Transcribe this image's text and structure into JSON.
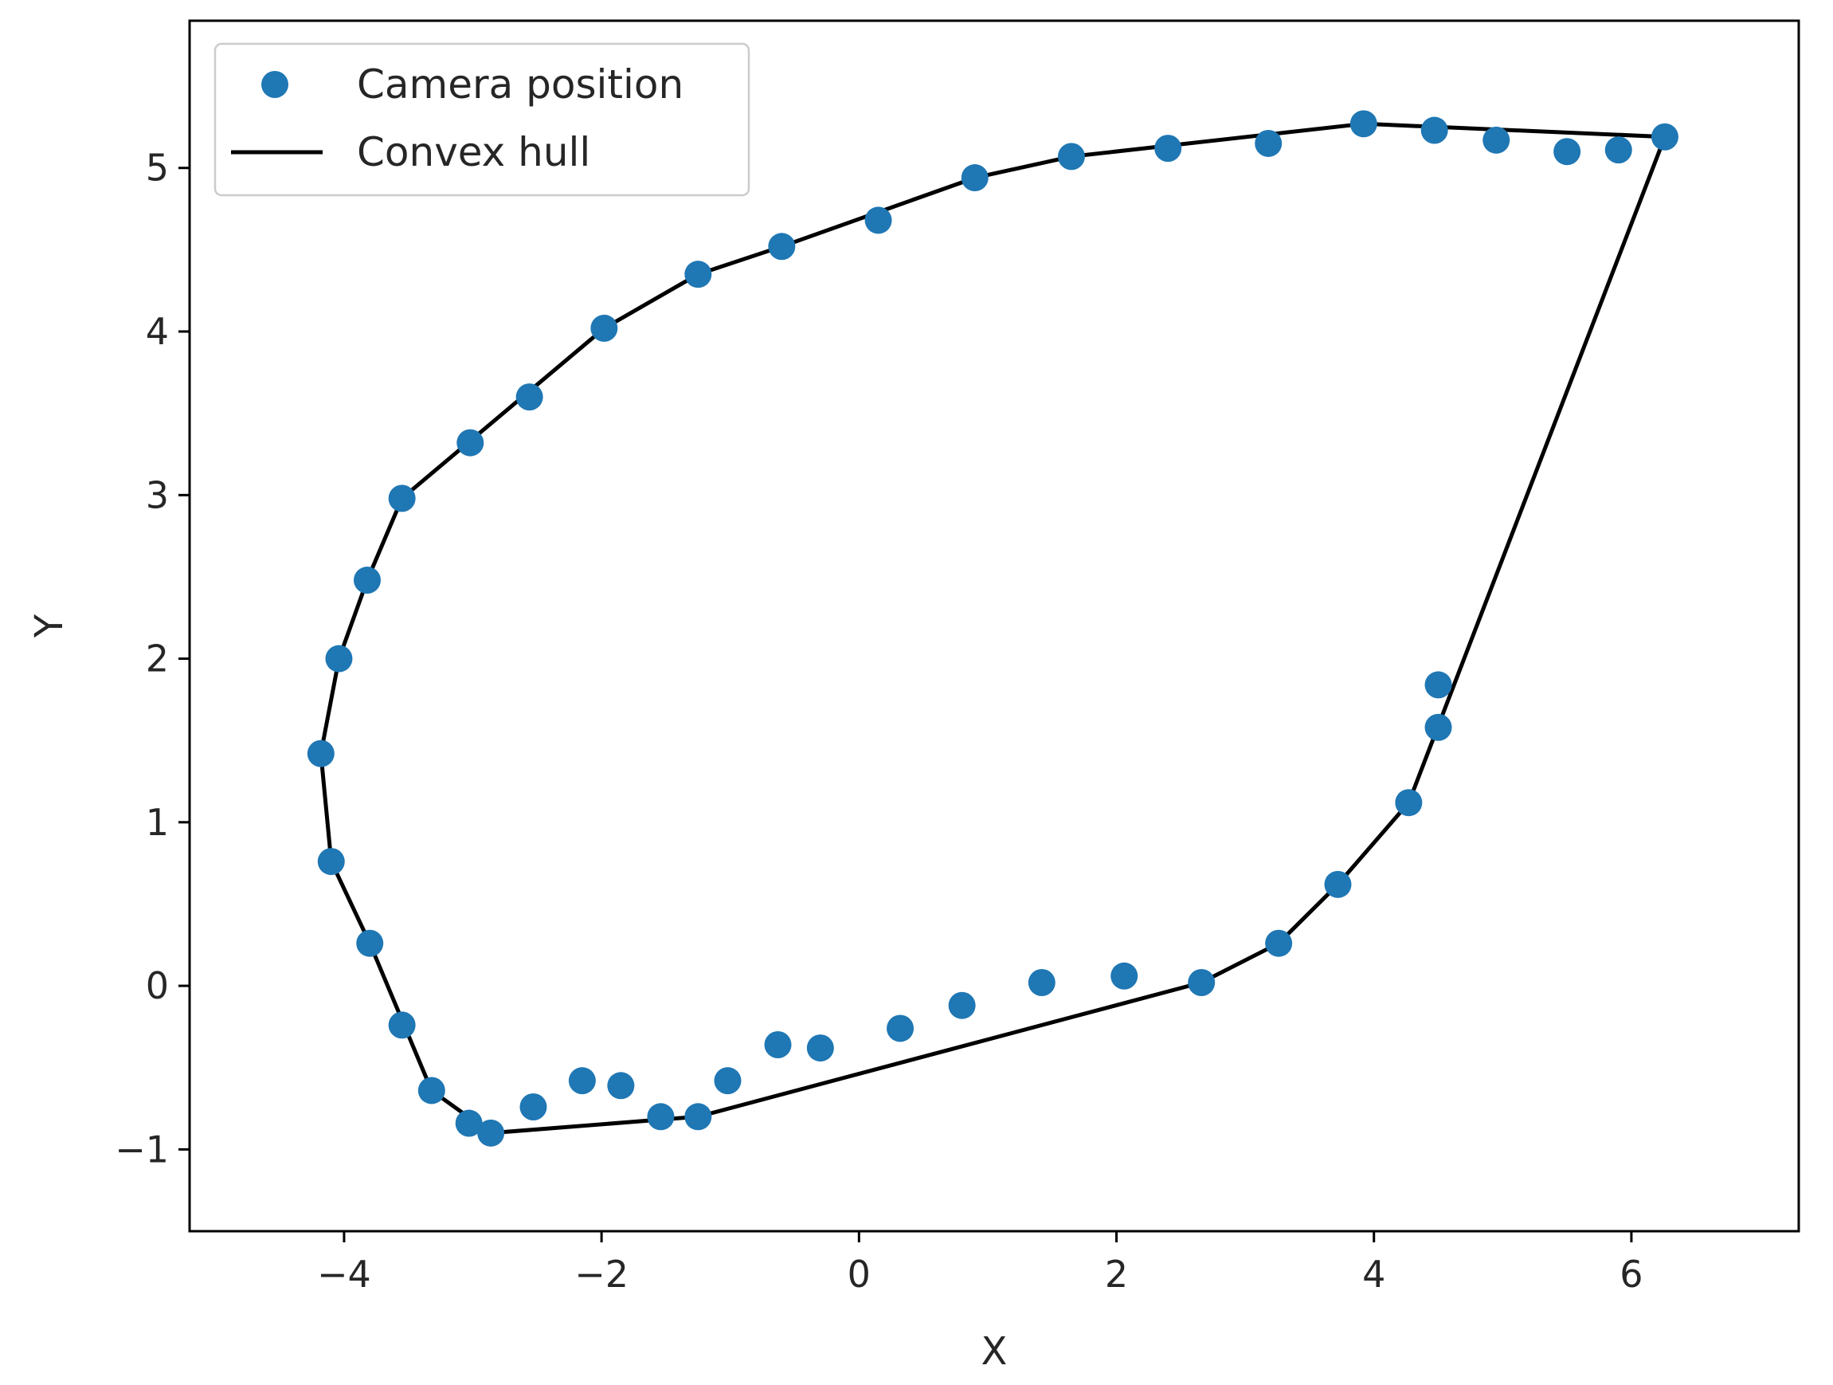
{
  "chart_data": {
    "type": "scatter",
    "xlabel": "X",
    "ylabel": "Y",
    "xlim": [
      -5.2,
      7.3
    ],
    "ylim": [
      -1.5,
      5.9
    ],
    "xticks": [
      -4,
      -2,
      0,
      2,
      4,
      6
    ],
    "yticks": [
      -1,
      0,
      1,
      2,
      3,
      4,
      5
    ],
    "xtick_labels": [
      "−4",
      "−2",
      "0",
      "2",
      "4",
      "6"
    ],
    "ytick_labels": [
      "−1",
      "0",
      "1",
      "2",
      "3",
      "4",
      "5"
    ],
    "grid": false,
    "legend": {
      "placement": "top-left",
      "entries": [
        {
          "label": "Camera position",
          "marker": "circle",
          "color": "#1f77b4"
        },
        {
          "label": "Convex hull",
          "marker": "line",
          "color": "#000000"
        }
      ]
    },
    "series": [
      {
        "name": "Camera position",
        "type": "scatter",
        "color": "#1f77b4",
        "points": [
          [
            -4.18,
            1.42
          ],
          [
            -4.04,
            2.0
          ],
          [
            -3.82,
            2.48
          ],
          [
            -3.55,
            2.98
          ],
          [
            -3.02,
            3.32
          ],
          [
            -2.56,
            3.6
          ],
          [
            -1.98,
            4.02
          ],
          [
            -1.25,
            4.35
          ],
          [
            -0.6,
            4.52
          ],
          [
            0.15,
            4.68
          ],
          [
            0.9,
            4.94
          ],
          [
            1.65,
            5.07
          ],
          [
            2.4,
            5.12
          ],
          [
            3.18,
            5.15
          ],
          [
            3.92,
            5.27
          ],
          [
            4.47,
            5.23
          ],
          [
            4.95,
            5.17
          ],
          [
            5.5,
            5.1
          ],
          [
            5.9,
            5.11
          ],
          [
            6.26,
            5.19
          ],
          [
            4.5,
            1.84
          ],
          [
            4.5,
            1.58
          ],
          [
            4.27,
            1.12
          ],
          [
            3.72,
            0.62
          ],
          [
            3.26,
            0.26
          ],
          [
            2.66,
            0.02
          ],
          [
            2.06,
            0.06
          ],
          [
            1.42,
            0.02
          ],
          [
            0.8,
            -0.12
          ],
          [
            0.32,
            -0.26
          ],
          [
            -0.3,
            -0.38
          ],
          [
            -0.63,
            -0.36
          ],
          [
            -1.02,
            -0.58
          ],
          [
            -1.25,
            -0.8
          ],
          [
            -1.54,
            -0.8
          ],
          [
            -1.85,
            -0.61
          ],
          [
            -2.15,
            -0.58
          ],
          [
            -2.53,
            -0.74
          ],
          [
            -2.86,
            -0.9
          ],
          [
            -3.03,
            -0.84
          ],
          [
            -3.32,
            -0.64
          ],
          [
            -3.55,
            -0.24
          ],
          [
            -3.8,
            0.26
          ],
          [
            -4.1,
            0.76
          ]
        ]
      },
      {
        "name": "Convex hull",
        "type": "line",
        "color": "#000000",
        "points": [
          [
            -2.86,
            -0.9
          ],
          [
            -1.25,
            -0.8
          ],
          [
            2.66,
            0.02
          ],
          [
            3.26,
            0.26
          ],
          [
            3.72,
            0.62
          ],
          [
            4.27,
            1.12
          ],
          [
            6.26,
            5.19
          ],
          [
            3.92,
            5.27
          ],
          [
            1.65,
            5.07
          ],
          [
            0.9,
            4.94
          ],
          [
            -0.6,
            4.52
          ],
          [
            -1.25,
            4.35
          ],
          [
            -1.98,
            4.02
          ],
          [
            -3.55,
            2.98
          ],
          [
            -3.82,
            2.48
          ],
          [
            -4.04,
            2.0
          ],
          [
            -4.18,
            1.42
          ],
          [
            -4.1,
            0.76
          ],
          [
            -3.8,
            0.26
          ],
          [
            -3.32,
            -0.64
          ],
          [
            -2.86,
            -0.9
          ]
        ]
      }
    ]
  }
}
